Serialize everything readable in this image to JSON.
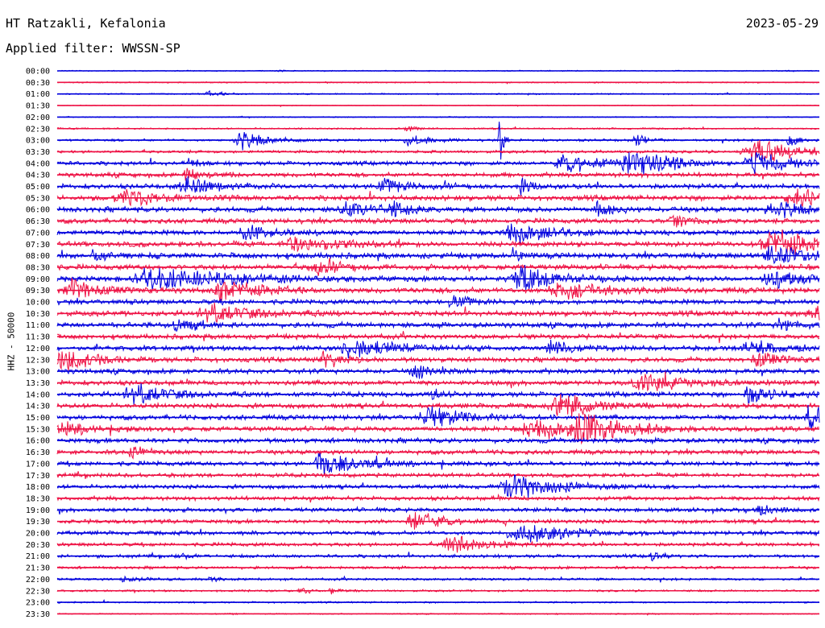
{
  "header": {
    "station": "HT Ratzakli, Kefalonia",
    "date": "2023-05-29",
    "filter": "Applied filter: WWSSN-SP"
  },
  "chart_data": {
    "type": "line",
    "title": "HT Ratzakli, Kefalonia",
    "subtitle": "Applied filter: WWSSN-SP",
    "ylabel": "HHZ - 50000",
    "xlabel": "",
    "grid": false,
    "legend": "none",
    "colors": [
      "#0000dd",
      "#ee1144"
    ],
    "row_labels": [
      "00:00",
      "00:30",
      "01:00",
      "01:30",
      "02:00",
      "02:30",
      "03:00",
      "03:30",
      "04:00",
      "04:30",
      "05:00",
      "05:30",
      "06:00",
      "06:30",
      "07:00",
      "07:30",
      "08:00",
      "08:30",
      "09:00",
      "09:30",
      "10:00",
      "10:30",
      "11:00",
      "11:30",
      "12:00",
      "12:30",
      "13:00",
      "13:30",
      "14:00",
      "14:30",
      "15:00",
      "15:30",
      "16:00",
      "16:30",
      "17:00",
      "17:30",
      "18:00",
      "18:30",
      "19:00",
      "19:30",
      "20:00",
      "20:30",
      "21:00",
      "21:30",
      "22:00",
      "22:30",
      "23:00",
      "23:30"
    ],
    "noise_amplitude": [
      0.5,
      0.6,
      0.6,
      0.4,
      0.5,
      0.8,
      1.2,
      1.4,
      2,
      2.2,
      2.4,
      2.6,
      2.6,
      2.4,
      2.4,
      2.6,
      2.8,
      2.6,
      2.8,
      2.8,
      2.4,
      2.6,
      2.6,
      2.4,
      2.4,
      2.4,
      2.4,
      2.4,
      2.4,
      2.4,
      2.4,
      2.4,
      2.4,
      2.2,
      2.2,
      2,
      2,
      2,
      2,
      2,
      2,
      1.8,
      1.6,
      1.4,
      1.2,
      1,
      0.8,
      0.6
    ],
    "events": [
      {
        "row": 0,
        "x": 0.29,
        "amp": 2,
        "dur": 0.006
      },
      {
        "row": 0,
        "x": 0.96,
        "amp": 2,
        "dur": 0.004
      },
      {
        "row": 2,
        "x": 0.2,
        "amp": 4,
        "dur": 0.02
      },
      {
        "row": 5,
        "x": 0.46,
        "amp": 6,
        "dur": 0.01
      },
      {
        "row": 6,
        "x": 0.24,
        "amp": 14,
        "dur": 0.03
      },
      {
        "row": 6,
        "x": 0.46,
        "amp": 8,
        "dur": 0.02
      },
      {
        "row": 6,
        "x": 0.58,
        "amp": 40,
        "dur": 0.004
      },
      {
        "row": 6,
        "x": 0.76,
        "amp": 12,
        "dur": 0.01
      },
      {
        "row": 6,
        "x": 0.96,
        "amp": 10,
        "dur": 0.01
      },
      {
        "row": 7,
        "x": 0.92,
        "amp": 16,
        "dur": 0.06
      },
      {
        "row": 8,
        "x": 0.17,
        "amp": 10,
        "dur": 0.01
      },
      {
        "row": 8,
        "x": 0.67,
        "amp": 12,
        "dur": 0.05
      },
      {
        "row": 8,
        "x": 0.75,
        "amp": 18,
        "dur": 0.03
      },
      {
        "row": 8,
        "x": 0.79,
        "amp": 14,
        "dur": 0.02
      },
      {
        "row": 8,
        "x": 0.92,
        "amp": 14,
        "dur": 0.05
      },
      {
        "row": 9,
        "x": 0.17,
        "amp": 10,
        "dur": 0.02
      },
      {
        "row": 10,
        "x": 0.17,
        "amp": 12,
        "dur": 0.04
      },
      {
        "row": 10,
        "x": 0.43,
        "amp": 10,
        "dur": 0.03
      },
      {
        "row": 10,
        "x": 0.61,
        "amp": 14,
        "dur": 0.01
      },
      {
        "row": 11,
        "x": 0.09,
        "amp": 12,
        "dur": 0.04
      },
      {
        "row": 11,
        "x": 0.97,
        "amp": 12,
        "dur": 0.04
      },
      {
        "row": 12,
        "x": 0.38,
        "amp": 10,
        "dur": 0.03
      },
      {
        "row": 12,
        "x": 0.44,
        "amp": 14,
        "dur": 0.02
      },
      {
        "row": 12,
        "x": 0.71,
        "amp": 10,
        "dur": 0.02
      },
      {
        "row": 12,
        "x": 0.94,
        "amp": 14,
        "dur": 0.03
      },
      {
        "row": 13,
        "x": 0.81,
        "amp": 10,
        "dur": 0.02
      },
      {
        "row": 14,
        "x": 0.25,
        "amp": 12,
        "dur": 0.03
      },
      {
        "row": 14,
        "x": 0.6,
        "amp": 16,
        "dur": 0.04
      },
      {
        "row": 15,
        "x": 0.31,
        "amp": 14,
        "dur": 0.04
      },
      {
        "row": 15,
        "x": 0.94,
        "amp": 20,
        "dur": 0.05
      },
      {
        "row": 16,
        "x": 0.05,
        "amp": 10,
        "dur": 0.02
      },
      {
        "row": 16,
        "x": 0.6,
        "amp": 14,
        "dur": 0.01
      },
      {
        "row": 16,
        "x": 0.94,
        "amp": 14,
        "dur": 0.04
      },
      {
        "row": 17,
        "x": 0.34,
        "amp": 10,
        "dur": 0.03
      },
      {
        "row": 18,
        "x": 0.13,
        "amp": 16,
        "dur": 0.08
      },
      {
        "row": 18,
        "x": 0.61,
        "amp": 18,
        "dur": 0.04
      },
      {
        "row": 18,
        "x": 0.94,
        "amp": 12,
        "dur": 0.04
      },
      {
        "row": 19,
        "x": 0.02,
        "amp": 14,
        "dur": 0.03
      },
      {
        "row": 19,
        "x": 0.22,
        "amp": 14,
        "dur": 0.04
      },
      {
        "row": 19,
        "x": 0.66,
        "amp": 12,
        "dur": 0.04
      },
      {
        "row": 20,
        "x": 0.52,
        "amp": 10,
        "dur": 0.02
      },
      {
        "row": 21,
        "x": 0.2,
        "amp": 12,
        "dur": 0.05
      },
      {
        "row": 21,
        "x": 0.99,
        "amp": 14,
        "dur": 0.02
      },
      {
        "row": 22,
        "x": 0.16,
        "amp": 14,
        "dur": 0.02
      },
      {
        "row": 22,
        "x": 0.95,
        "amp": 10,
        "dur": 0.02
      },
      {
        "row": 24,
        "x": 0.39,
        "amp": 14,
        "dur": 0.05
      },
      {
        "row": 24,
        "x": 0.65,
        "amp": 12,
        "dur": 0.02
      },
      {
        "row": 24,
        "x": 0.91,
        "amp": 12,
        "dur": 0.04
      },
      {
        "row": 25,
        "x": 0.01,
        "amp": 18,
        "dur": 0.03
      },
      {
        "row": 25,
        "x": 0.35,
        "amp": 14,
        "dur": 0.02
      },
      {
        "row": 25,
        "x": 0.92,
        "amp": 10,
        "dur": 0.03
      },
      {
        "row": 26,
        "x": 0.47,
        "amp": 12,
        "dur": 0.02
      },
      {
        "row": 27,
        "x": 0.77,
        "amp": 12,
        "dur": 0.05
      },
      {
        "row": 28,
        "x": 0.1,
        "amp": 14,
        "dur": 0.04
      },
      {
        "row": 28,
        "x": 0.49,
        "amp": 10,
        "dur": 0.01
      },
      {
        "row": 28,
        "x": 0.91,
        "amp": 14,
        "dur": 0.03
      },
      {
        "row": 29,
        "x": 0.66,
        "amp": 18,
        "dur": 0.04
      },
      {
        "row": 30,
        "x": 0.49,
        "amp": 14,
        "dur": 0.04
      },
      {
        "row": 30,
        "x": 0.99,
        "amp": 16,
        "dur": 0.02
      },
      {
        "row": 31,
        "x": 0.01,
        "amp": 10,
        "dur": 0.03
      },
      {
        "row": 31,
        "x": 0.63,
        "amp": 14,
        "dur": 0.06
      },
      {
        "row": 31,
        "x": 0.69,
        "amp": 20,
        "dur": 0.04
      },
      {
        "row": 33,
        "x": 0.1,
        "amp": 8,
        "dur": 0.02
      },
      {
        "row": 34,
        "x": 0.35,
        "amp": 18,
        "dur": 0.04
      },
      {
        "row": 36,
        "x": 0.6,
        "amp": 20,
        "dur": 0.05
      },
      {
        "row": 38,
        "x": 0.92,
        "amp": 8,
        "dur": 0.02
      },
      {
        "row": 39,
        "x": 0.47,
        "amp": 14,
        "dur": 0.03
      },
      {
        "row": 40,
        "x": 0.61,
        "amp": 16,
        "dur": 0.05
      },
      {
        "row": 41,
        "x": 0.52,
        "amp": 12,
        "dur": 0.04
      },
      {
        "row": 42,
        "x": 0.16,
        "amp": 6,
        "dur": 0.01
      },
      {
        "row": 42,
        "x": 0.78,
        "amp": 8,
        "dur": 0.01
      },
      {
        "row": 44,
        "x": 0.09,
        "amp": 6,
        "dur": 0.02
      },
      {
        "row": 44,
        "x": 0.2,
        "amp": 4,
        "dur": 0.01
      },
      {
        "row": 45,
        "x": 0.32,
        "amp": 6,
        "dur": 0.01
      },
      {
        "row": 45,
        "x": 0.36,
        "amp": 5,
        "dur": 0.01
      }
    ]
  }
}
